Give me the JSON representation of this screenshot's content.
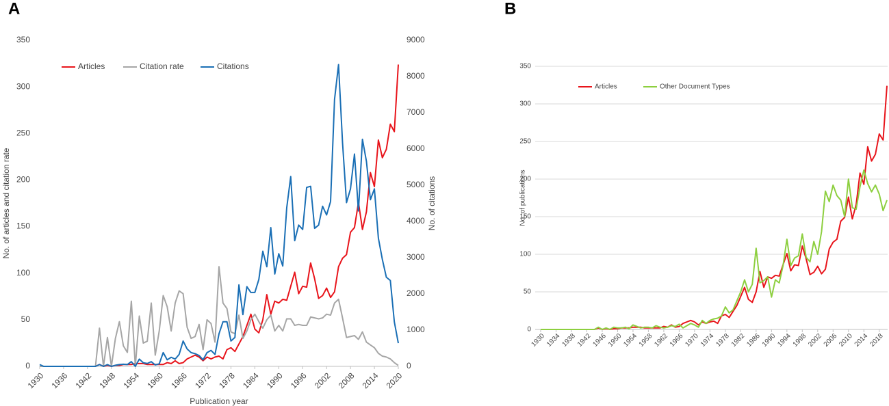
{
  "chart_data": [
    {
      "type": "line",
      "panel_label": "A",
      "x_label": "Publication year",
      "y_label": "No. of articles and citation rate",
      "y2_label": "No. of citations",
      "x": [
        1930,
        1931,
        1932,
        1933,
        1934,
        1935,
        1936,
        1937,
        1938,
        1939,
        1940,
        1941,
        1942,
        1943,
        1944,
        1945,
        1946,
        1947,
        1948,
        1949,
        1950,
        1951,
        1952,
        1953,
        1954,
        1955,
        1956,
        1957,
        1958,
        1959,
        1960,
        1961,
        1962,
        1963,
        1964,
        1965,
        1966,
        1967,
        1968,
        1969,
        1970,
        1971,
        1972,
        1973,
        1974,
        1975,
        1976,
        1977,
        1978,
        1979,
        1980,
        1981,
        1982,
        1983,
        1984,
        1985,
        1986,
        1987,
        1988,
        1989,
        1990,
        1991,
        1992,
        1993,
        1994,
        1995,
        1996,
        1997,
        1998,
        1999,
        2000,
        2001,
        2002,
        2003,
        2004,
        2005,
        2006,
        2007,
        2008,
        2009,
        2010,
        2011,
        2012,
        2013,
        2014,
        2015,
        2016,
        2017,
        2018,
        2019,
        2020
      ],
      "xlim": [
        1930,
        2020
      ],
      "xticks": [
        1930,
        1936,
        1942,
        1948,
        1954,
        1960,
        1966,
        1972,
        1978,
        1984,
        1990,
        1996,
        2002,
        2008,
        2014,
        2020
      ],
      "ylim": [
        0,
        350
      ],
      "yticks": [
        0,
        50,
        100,
        150,
        200,
        250,
        300,
        350
      ],
      "y2lim": [
        0,
        9000
      ],
      "y2ticks": [
        0,
        1000,
        2000,
        3000,
        4000,
        5000,
        6000,
        7000,
        8000,
        9000
      ],
      "grid": false,
      "series": [
        {
          "name": "Articles",
          "color": "#e8141b",
          "values": [
            0,
            0,
            0,
            0,
            0,
            0,
            0,
            0,
            0,
            0,
            0,
            0,
            0,
            0,
            0,
            2,
            0,
            1,
            0,
            1,
            1,
            2,
            2,
            2,
            3,
            3,
            3,
            2,
            2,
            2,
            2,
            2,
            4,
            3,
            6,
            3,
            4,
            8,
            10,
            12,
            10,
            6,
            10,
            8,
            10,
            11,
            8,
            18,
            20,
            16,
            24,
            32,
            44,
            56,
            40,
            36,
            50,
            77,
            56,
            70,
            68,
            72,
            71,
            86,
            101,
            78,
            86,
            85,
            111,
            94,
            73,
            76,
            84,
            74,
            80,
            107,
            116,
            120,
            144,
            149,
            176,
            147,
            166,
            208,
            193,
            243,
            224,
            233,
            260,
            252,
            324
          ]
        },
        {
          "name": "Citation rate",
          "color": "#a6a6a6",
          "values": [
            0,
            0,
            0,
            0,
            0,
            0,
            0,
            0,
            0,
            0,
            0,
            0,
            0,
            0,
            0,
            41,
            0,
            31,
            0,
            30,
            48,
            22,
            15,
            70,
            0,
            54,
            25,
            27,
            68,
            12,
            38,
            76,
            64,
            38,
            68,
            81,
            78,
            42,
            30,
            32,
            45,
            18,
            50,
            46,
            26,
            107,
            68,
            62,
            37,
            35,
            55,
            30,
            38,
            50,
            56,
            48,
            41,
            50,
            55,
            38,
            44,
            38,
            51,
            51,
            44,
            45,
            44,
            44,
            53,
            52,
            51,
            52,
            56,
            55,
            68,
            72,
            52,
            31,
            32,
            33,
            29,
            37,
            26,
            23,
            20,
            14,
            11,
            10,
            8,
            4,
            1
          ]
        },
        {
          "name": "Citations",
          "color": "#1a6fb5",
          "axis": "y2",
          "values": [
            50,
            0,
            0,
            0,
            0,
            0,
            0,
            0,
            0,
            0,
            0,
            0,
            0,
            0,
            0,
            50,
            0,
            50,
            0,
            30,
            50,
            60,
            50,
            130,
            0,
            200,
            100,
            80,
            130,
            40,
            70,
            380,
            180,
            250,
            200,
            330,
            700,
            480,
            380,
            350,
            300,
            180,
            380,
            440,
            330,
            900,
            1230,
            1230,
            700,
            800,
            2250,
            1430,
            2200,
            2040,
            2040,
            2400,
            3180,
            2750,
            3830,
            2550,
            3110,
            2770,
            4380,
            5240,
            3470,
            3900,
            3780,
            4940,
            4970,
            3810,
            3900,
            4420,
            4180,
            4550,
            7370,
            8330,
            6180,
            4520,
            4900,
            5860,
            4290,
            6270,
            5660,
            4600,
            4900,
            3540,
            2950,
            2460,
            2370,
            1230,
            640
          ]
        }
      ]
    },
    {
      "type": "line",
      "panel_label": "B",
      "y_label": "No. of publications",
      "x": [
        1930,
        1931,
        1932,
        1933,
        1934,
        1935,
        1936,
        1937,
        1938,
        1939,
        1940,
        1941,
        1942,
        1943,
        1944,
        1945,
        1946,
        1947,
        1948,
        1949,
        1950,
        1951,
        1952,
        1953,
        1954,
        1955,
        1956,
        1957,
        1958,
        1959,
        1960,
        1961,
        1962,
        1963,
        1964,
        1965,
        1966,
        1967,
        1968,
        1969,
        1970,
        1971,
        1972,
        1973,
        1974,
        1975,
        1976,
        1977,
        1978,
        1979,
        1980,
        1981,
        1982,
        1983,
        1984,
        1985,
        1986,
        1987,
        1988,
        1989,
        1990,
        1991,
        1992,
        1993,
        1994,
        1995,
        1996,
        1997,
        1998,
        1999,
        2000,
        2001,
        2002,
        2003,
        2004,
        2005,
        2006,
        2007,
        2008,
        2009,
        2010,
        2011,
        2012,
        2013,
        2014,
        2015,
        2016,
        2017,
        2018,
        2019,
        2020
      ],
      "xlim": [
        1930,
        2020
      ],
      "xticks": [
        1930,
        1934,
        1938,
        1942,
        1946,
        1950,
        1954,
        1958,
        1962,
        1966,
        1970,
        1974,
        1978,
        1982,
        1986,
        1990,
        1994,
        1998,
        2002,
        2006,
        2010,
        2014,
        2018
      ],
      "ylim": [
        0,
        350
      ],
      "yticks": [
        0,
        50,
        100,
        150,
        200,
        250,
        300,
        350
      ],
      "grid": true,
      "series": [
        {
          "name": "Articles",
          "color": "#e8141b",
          "values": [
            0,
            0,
            0,
            0,
            0,
            0,
            0,
            0,
            0,
            0,
            0,
            0,
            0,
            0,
            0,
            2,
            0,
            1,
            0,
            1,
            1,
            2,
            2,
            2,
            3,
            3,
            3,
            2,
            2,
            2,
            2,
            2,
            4,
            3,
            6,
            3,
            4,
            8,
            10,
            12,
            10,
            6,
            10,
            8,
            10,
            11,
            8,
            18,
            20,
            16,
            24,
            32,
            44,
            56,
            40,
            36,
            50,
            77,
            56,
            70,
            68,
            72,
            71,
            86,
            101,
            78,
            86,
            85,
            111,
            94,
            73,
            76,
            84,
            74,
            80,
            107,
            116,
            120,
            144,
            149,
            176,
            147,
            166,
            208,
            193,
            243,
            224,
            233,
            260,
            252,
            324
          ]
        },
        {
          "name": "Other Document Types",
          "color": "#8dcf3f",
          "values": [
            0,
            0,
            0,
            0,
            0,
            0,
            0,
            0,
            0,
            0,
            0,
            0,
            0,
            0,
            0,
            3,
            0,
            2,
            0,
            3,
            2,
            2,
            3,
            1,
            6,
            4,
            2,
            3,
            3,
            2,
            5,
            3,
            2,
            3,
            5,
            4,
            7,
            2,
            5,
            8,
            6,
            3,
            12,
            8,
            12,
            14,
            15,
            18,
            30,
            22,
            26,
            38,
            50,
            66,
            50,
            60,
            108,
            62,
            65,
            70,
            43,
            66,
            62,
            85,
            120,
            85,
            95,
            98,
            127,
            96,
            90,
            117,
            100,
            130,
            184,
            170,
            192,
            178,
            172,
            150,
            200,
            162,
            160,
            190,
            212,
            194,
            183,
            192,
            180,
            158,
            172
          ]
        }
      ]
    }
  ]
}
